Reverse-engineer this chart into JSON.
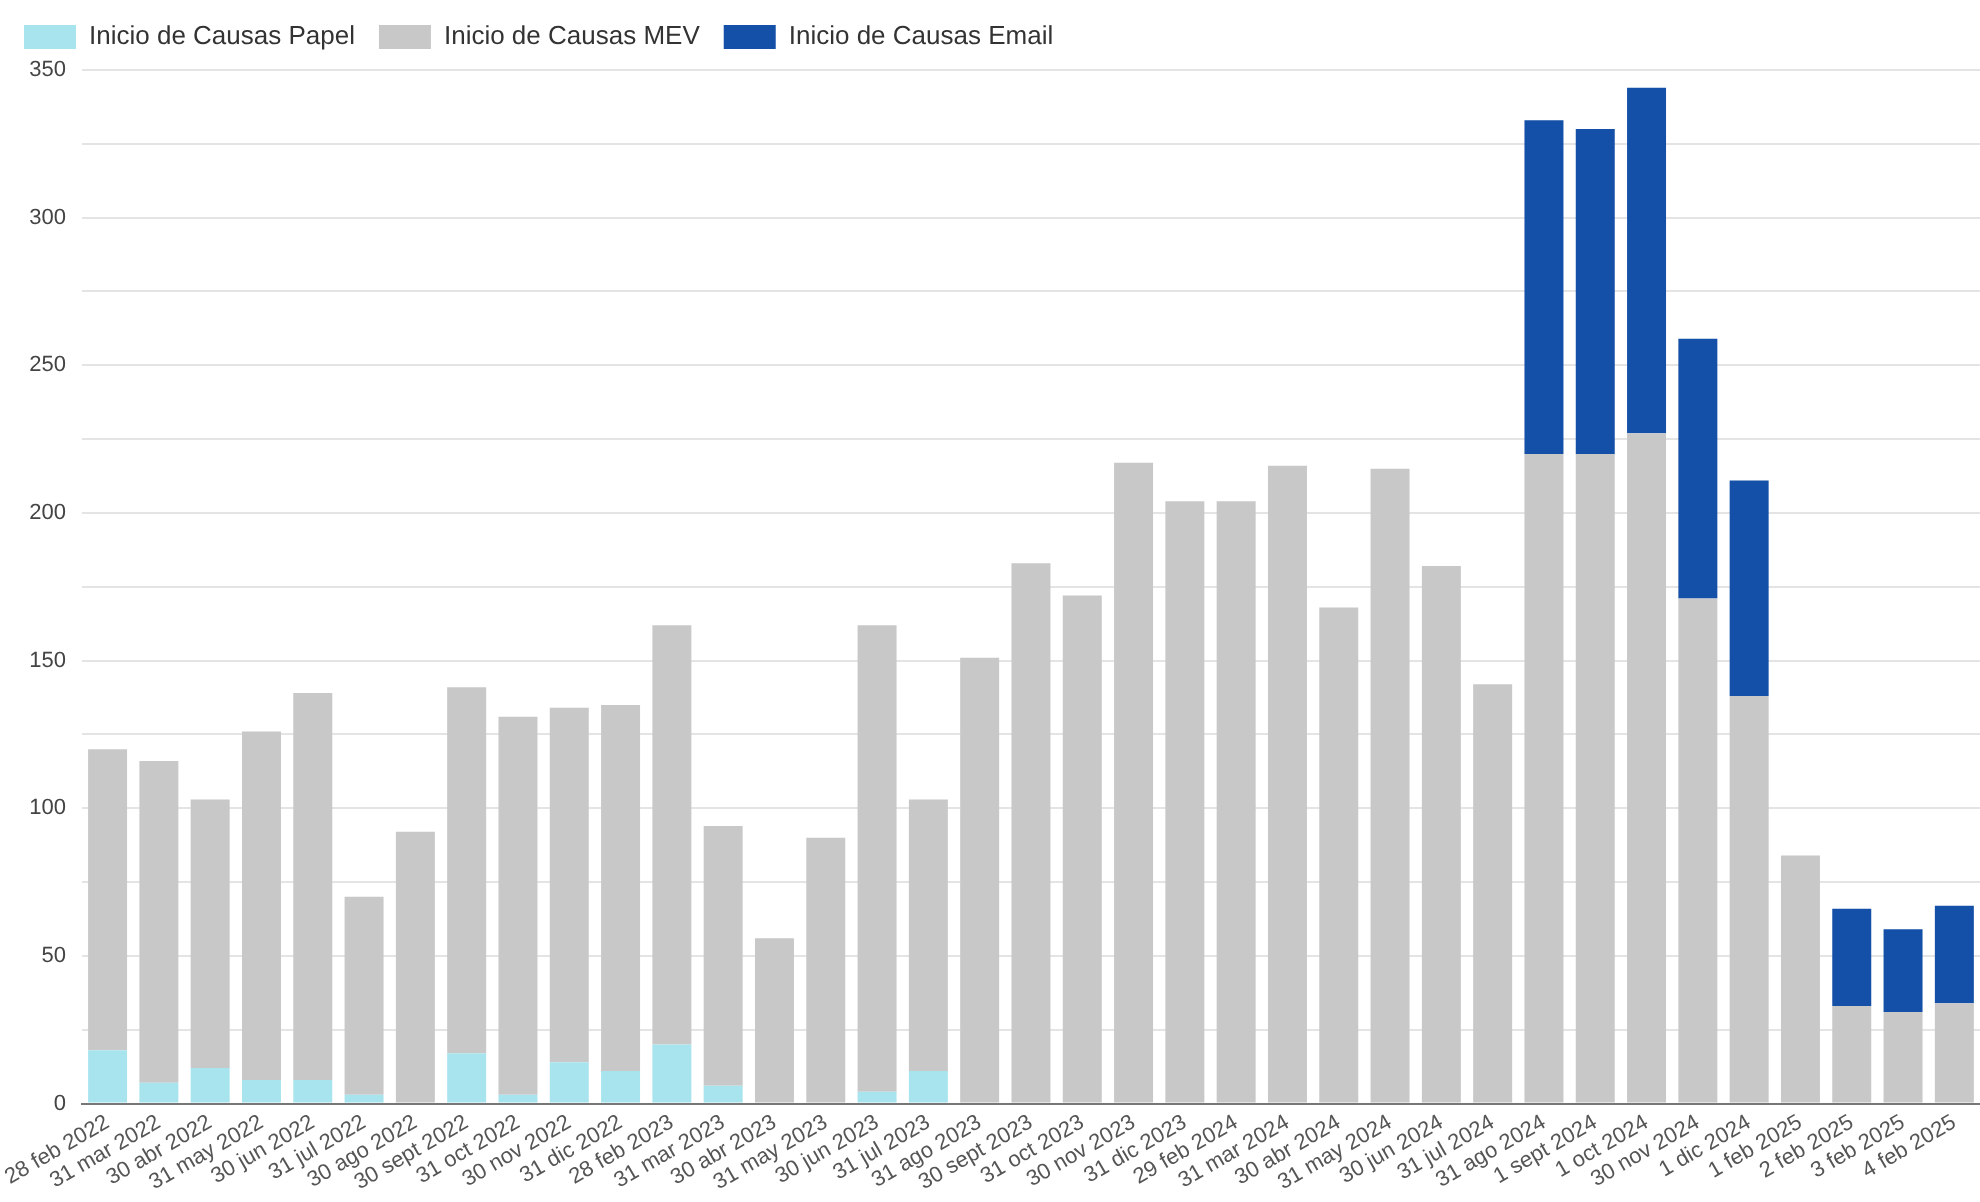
{
  "chart_data": {
    "type": "bar",
    "stacked": true,
    "legend": "top left",
    "grid": "y",
    "categories": [
      "28 feb 2022",
      "31 mar 2022",
      "30 abr 2022",
      "31 may 2022",
      "30 jun 2022",
      "31 jul 2022",
      "30 ago 2022",
      "30 sept 2022",
      "31 oct 2022",
      "30 nov 2022",
      "31 dic 2022",
      "28 feb 2023",
      "31 mar 2023",
      "30 abr 2023",
      "31 may 2023",
      "30 jun 2023",
      "31 jul 2023",
      "31 ago 2023",
      "30 sept 2023",
      "31 oct 2023",
      "30 nov 2023",
      "31 dic 2023",
      "29 feb 2024",
      "31 mar 2024",
      "30 abr 2024",
      "31 may 2024",
      "30 jun 2024",
      "31 jul 2024",
      "31 ago 2024",
      "1 sept 2024",
      "1 oct 2024",
      "30 nov 2024",
      "1 dic 2024",
      "1 feb 2025",
      "2 feb 2025",
      "3 feb 2025",
      "4 feb 2025"
    ],
    "series": [
      {
        "name": "Inicio de Causas Papel",
        "color": "#a8e4ee",
        "values": [
          18,
          7,
          12,
          8,
          8,
          3,
          0,
          17,
          3,
          14,
          11,
          20,
          6,
          0,
          0,
          4,
          11,
          null,
          null,
          null,
          null,
          null,
          null,
          null,
          null,
          null,
          null,
          null,
          null,
          null,
          null,
          null,
          null,
          null,
          null,
          null,
          null
        ]
      },
      {
        "name": "Inicio de Causas MEV",
        "color": "#c8c8c8",
        "values": [
          102,
          109,
          91,
          118,
          131,
          67,
          92,
          124,
          128,
          120,
          124,
          142,
          88,
          56,
          90,
          158,
          92,
          151,
          183,
          172,
          217,
          204,
          204,
          216,
          168,
          215,
          182,
          142,
          220,
          220,
          227,
          171,
          138,
          84,
          33,
          31,
          34
        ]
      },
      {
        "name": "Inicio de Causas Email",
        "color": "#1550a8",
        "values": [
          null,
          null,
          null,
          null,
          null,
          null,
          null,
          null,
          null,
          null,
          null,
          null,
          null,
          null,
          null,
          null,
          null,
          null,
          null,
          null,
          null,
          null,
          null,
          null,
          null,
          null,
          null,
          null,
          113,
          110,
          117,
          88,
          73,
          null,
          33,
          28,
          33
        ]
      }
    ],
    "ylim": [
      0,
      350
    ],
    "yticks": [
      0,
      {
        "value": 25,
        "label": null
      },
      50,
      {
        "value": 75,
        "label": null
      },
      100,
      {
        "value": 125,
        "label": null
      },
      150,
      {
        "value": 175,
        "label": null
      },
      200,
      {
        "value": 225,
        "label": null
      },
      250,
      {
        "value": 275,
        "label": null
      },
      300,
      {
        "value": 325,
        "label": null
      },
      350
    ]
  }
}
